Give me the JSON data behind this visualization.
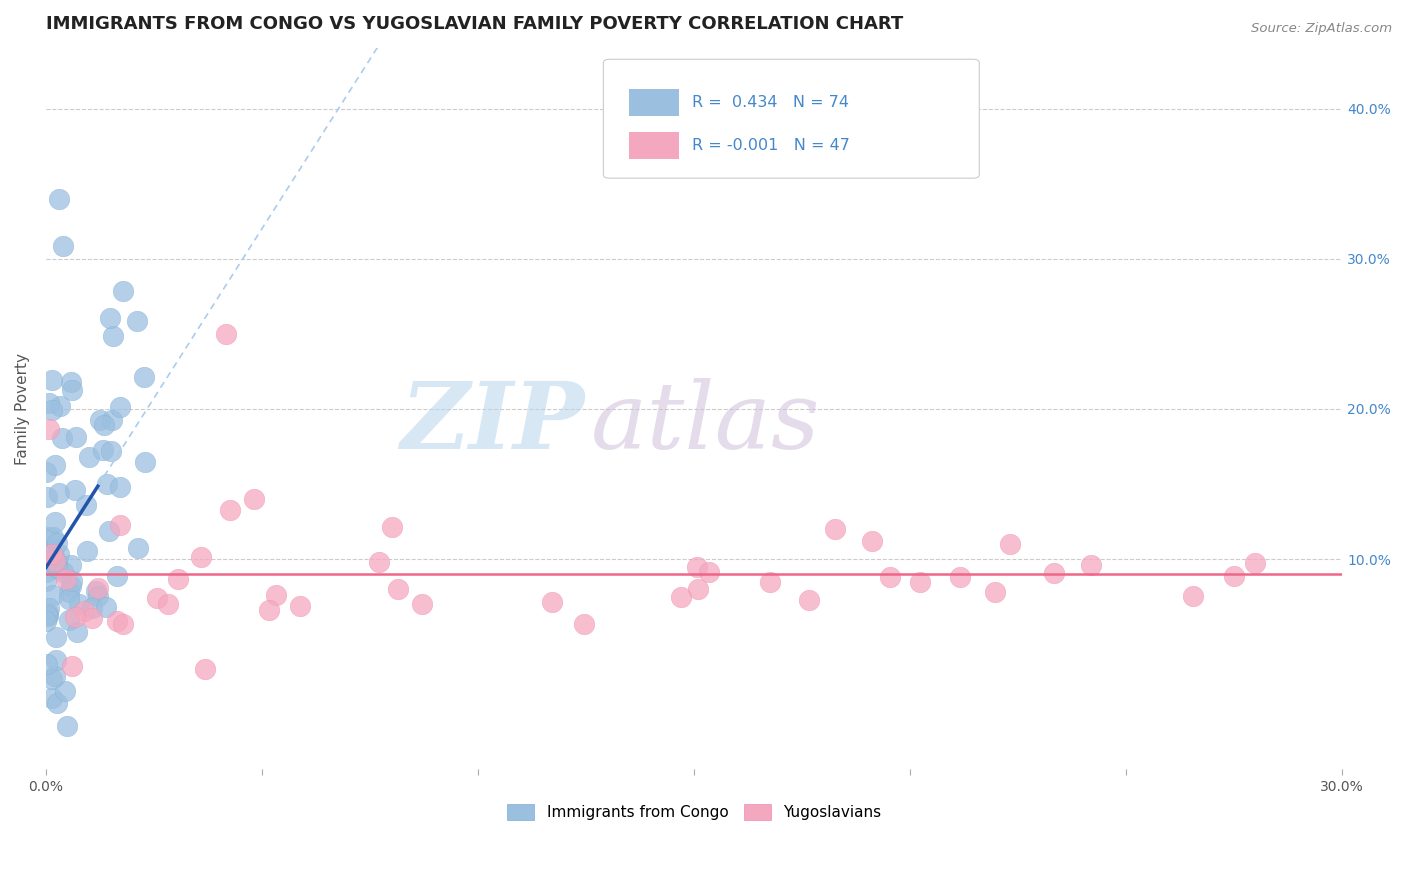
{
  "title": "IMMIGRANTS FROM CONGO VS YUGOSLAVIAN FAMILY POVERTY CORRELATION CHART",
  "source": "Source: ZipAtlas.com",
  "ylabel": "Family Poverty",
  "xlim": [
    0.0,
    0.3
  ],
  "ylim": [
    -0.04,
    0.44
  ],
  "x_tick_vals": [
    0.0,
    0.05,
    0.1,
    0.15,
    0.2,
    0.25,
    0.3
  ],
  "y_tick_vals": [
    0.0,
    0.1,
    0.2,
    0.3,
    0.4
  ],
  "congo_R": 0.434,
  "congo_N": 74,
  "yugo_R": -0.001,
  "yugo_N": 47,
  "congo_color": "#9bbfdf",
  "yugo_color": "#f4a8c0",
  "congo_dot_color": "#7aaed4",
  "yugo_dot_color": "#f08caf",
  "congo_line_color": "#2255aa",
  "congo_dash_color": "#aaccee",
  "yugo_line_color": "#ee6688",
  "background_color": "#FFFFFF",
  "grid_color": "#cccccc",
  "title_color": "#222222",
  "axis_label_color": "#555555",
  "right_tick_color": "#4488cc",
  "legend_entries": [
    "Immigrants from Congo",
    "Yugoslavians"
  ],
  "watermark_zip": "ZIP",
  "watermark_atlas": "atlas",
  "watermark_color": "#c8ddf0",
  "watermark_color2": "#d4c8e0"
}
